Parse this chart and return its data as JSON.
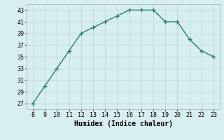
{
  "x": [
    8,
    9,
    10,
    11,
    12,
    13,
    14,
    15,
    16,
    17,
    18,
    19,
    20,
    21,
    22,
    23
  ],
  "y": [
    27,
    30,
    33,
    36,
    39,
    40,
    41,
    42,
    43,
    43,
    43,
    41,
    41,
    38,
    36,
    35
  ],
  "line_color": "#2e7d6e",
  "marker": "+",
  "marker_size": 4,
  "marker_lw": 1.0,
  "bg_color": "#d7eff0",
  "grid_color": "#b8d8d8",
  "xlabel": "Humidex (Indice chaleur)",
  "xlim": [
    7.5,
    23.5
  ],
  "ylim": [
    26,
    44
  ],
  "xticks": [
    8,
    9,
    10,
    11,
    12,
    13,
    14,
    15,
    16,
    17,
    18,
    19,
    20,
    21,
    22,
    23
  ],
  "yticks": [
    27,
    29,
    31,
    33,
    35,
    37,
    39,
    41,
    43
  ],
  "tick_fontsize": 6,
  "xlabel_fontsize": 7,
  "line_width": 1.0
}
